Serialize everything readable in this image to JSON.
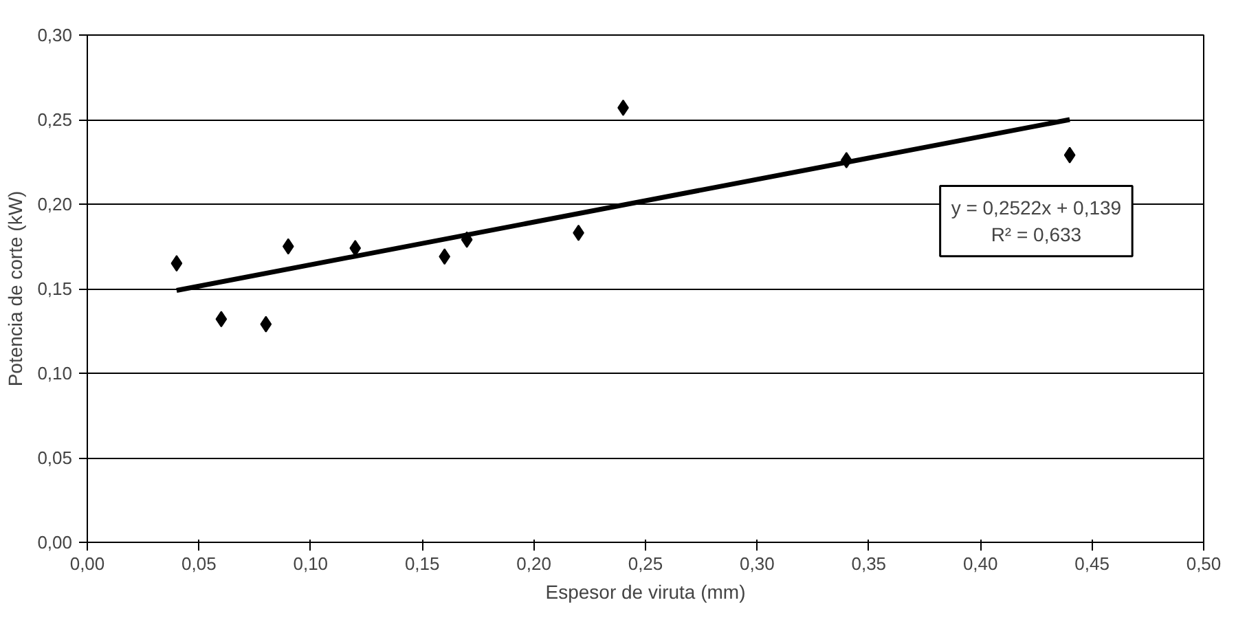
{
  "chart_data": {
    "type": "scatter",
    "xlabel": "Espesor de viruta (mm)",
    "ylabel": "Potencia de corte (kW)",
    "x": [
      0.04,
      0.06,
      0.08,
      0.09,
      0.12,
      0.16,
      0.17,
      0.22,
      0.24,
      0.34,
      0.44
    ],
    "series": [
      {
        "color": "#000000",
        "marker": "diamond",
        "values": [
          0.165,
          0.132,
          0.129,
          0.175,
          0.174,
          0.169,
          0.179,
          0.183,
          0.257,
          0.226,
          0.229
        ]
      },
      {
        "type": "line",
        "color": "#000000",
        "line_style": "solid",
        "x": [
          0.04,
          0.44
        ],
        "values": [
          0.149,
          0.25
        ]
      }
    ],
    "xlim": [
      0,
      0.5
    ],
    "ylim": [
      0,
      0.3
    ],
    "xticks": [
      {
        "value": 0,
        "label": "0,00"
      },
      {
        "value": 0.05,
        "label": "0,05"
      },
      {
        "value": 0.1,
        "label": "0,10"
      },
      {
        "value": 0.15,
        "label": "0,15"
      },
      {
        "value": 0.2,
        "label": "0,20"
      },
      {
        "value": 0.25,
        "label": "0,25"
      },
      {
        "value": 0.3,
        "label": "0,30"
      },
      {
        "value": 0.35,
        "label": "0,35"
      },
      {
        "value": 0.4,
        "label": "0,40"
      },
      {
        "value": 0.45,
        "label": "0,45"
      },
      {
        "value": 0.5,
        "label": "0,50"
      }
    ],
    "yticks": [
      {
        "value": 0,
        "label": "0,00"
      },
      {
        "value": 0.05,
        "label": "0,05"
      },
      {
        "value": 0.1,
        "label": "0,10"
      },
      {
        "value": 0.15,
        "label": "0,15"
      },
      {
        "value": 0.2,
        "label": "0,20"
      },
      {
        "value": 0.25,
        "label": "0,25"
      },
      {
        "value": 0.3,
        "label": "0,30"
      }
    ],
    "grid": "y",
    "annotations": [
      "y = 0,2522x + 0,139",
      "R² = 0,633"
    ]
  }
}
